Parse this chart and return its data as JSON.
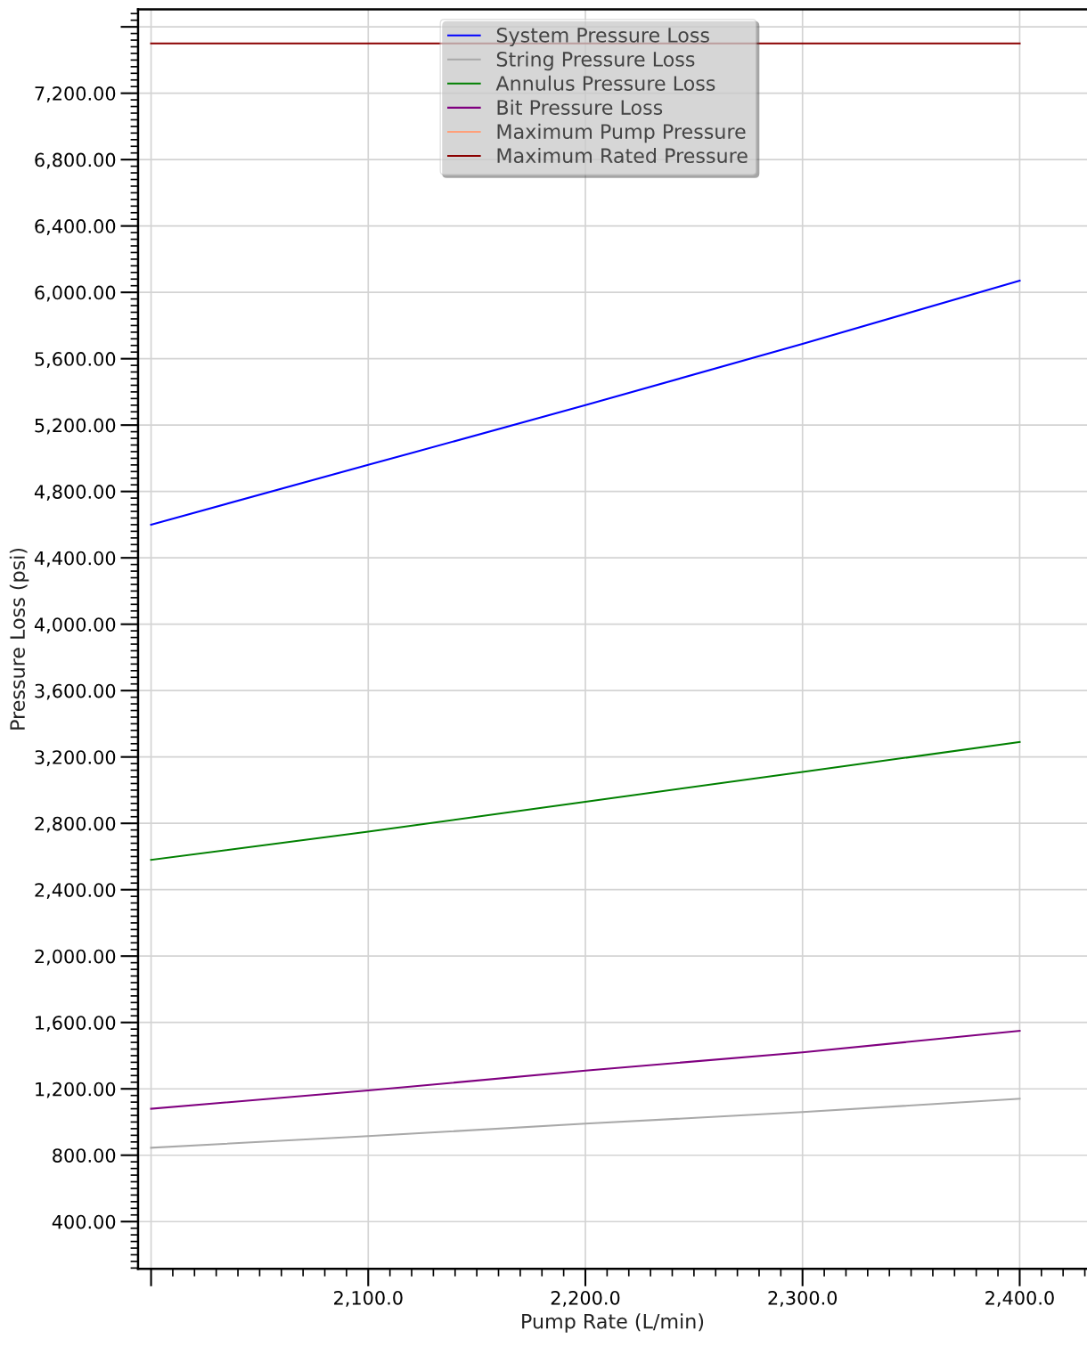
{
  "chart_data": {
    "type": "line",
    "xlabel": "Pump Rate (L/min)",
    "ylabel": "Pressure Loss (psi)",
    "x": [
      2000,
      2100,
      2200,
      2300,
      2400
    ],
    "series": [
      {
        "name": "System Pressure Loss",
        "color": "#0000ff",
        "values": [
          4600,
          4960,
          5320,
          5690,
          6070
        ]
      },
      {
        "name": "String Pressure Loss",
        "color": "#a9a9a9",
        "values": [
          845,
          915,
          990,
          1060,
          1140
        ]
      },
      {
        "name": "Annulus Pressure Loss",
        "color": "#008000",
        "values": [
          2580,
          2750,
          2930,
          3110,
          3290
        ]
      },
      {
        "name": "Bit Pressure Loss",
        "color": "#800080",
        "values": [
          1080,
          1190,
          1310,
          1420,
          1550
        ]
      },
      {
        "name": "Maximum Pump Pressure",
        "color": "#ffa07a",
        "values": [
          null,
          null,
          null,
          null,
          null
        ]
      },
      {
        "name": "Maximum Rated Pressure",
        "color": "#8b0000",
        "values": [
          7500,
          7500,
          7500,
          7500,
          7500
        ]
      }
    ],
    "xlim": [
      1994,
      2431
    ],
    "ylim": [
      115,
      7705
    ],
    "xticks": [
      {
        "value": 2000,
        "label": null
      },
      {
        "value": 2100,
        "label": "2,100.0"
      },
      {
        "value": 2200,
        "label": "2,200.0"
      },
      {
        "value": 2300,
        "label": "2,300.0"
      },
      {
        "value": 2400,
        "label": "2,400.0"
      }
    ],
    "yticks": [
      {
        "value": 400,
        "label": "400.00"
      },
      {
        "value": 800,
        "label": "800.00"
      },
      {
        "value": 1200,
        "label": "1,200.00"
      },
      {
        "value": 1600,
        "label": "1,600.00"
      },
      {
        "value": 2000,
        "label": "2,000.00"
      },
      {
        "value": 2400,
        "label": "2,400.00"
      },
      {
        "value": 2800,
        "label": "2,800.00"
      },
      {
        "value": 3200,
        "label": "3,200.00"
      },
      {
        "value": 3600,
        "label": "3,600.00"
      },
      {
        "value": 4000,
        "label": "4,000.00"
      },
      {
        "value": 4400,
        "label": "4,400.00"
      },
      {
        "value": 4800,
        "label": "4,800.00"
      },
      {
        "value": 5200,
        "label": "5,200.00"
      },
      {
        "value": 5600,
        "label": "5,600.00"
      },
      {
        "value": 6000,
        "label": "6,000.00"
      },
      {
        "value": 6400,
        "label": "6,400.00"
      },
      {
        "value": 6800,
        "label": "6,800.00"
      },
      {
        "value": 7200,
        "label": "7,200.00"
      },
      {
        "value": 7600,
        "label": null
      }
    ],
    "grid": true,
    "legend": "top",
    "line_style": "solid",
    "marker": "none"
  }
}
